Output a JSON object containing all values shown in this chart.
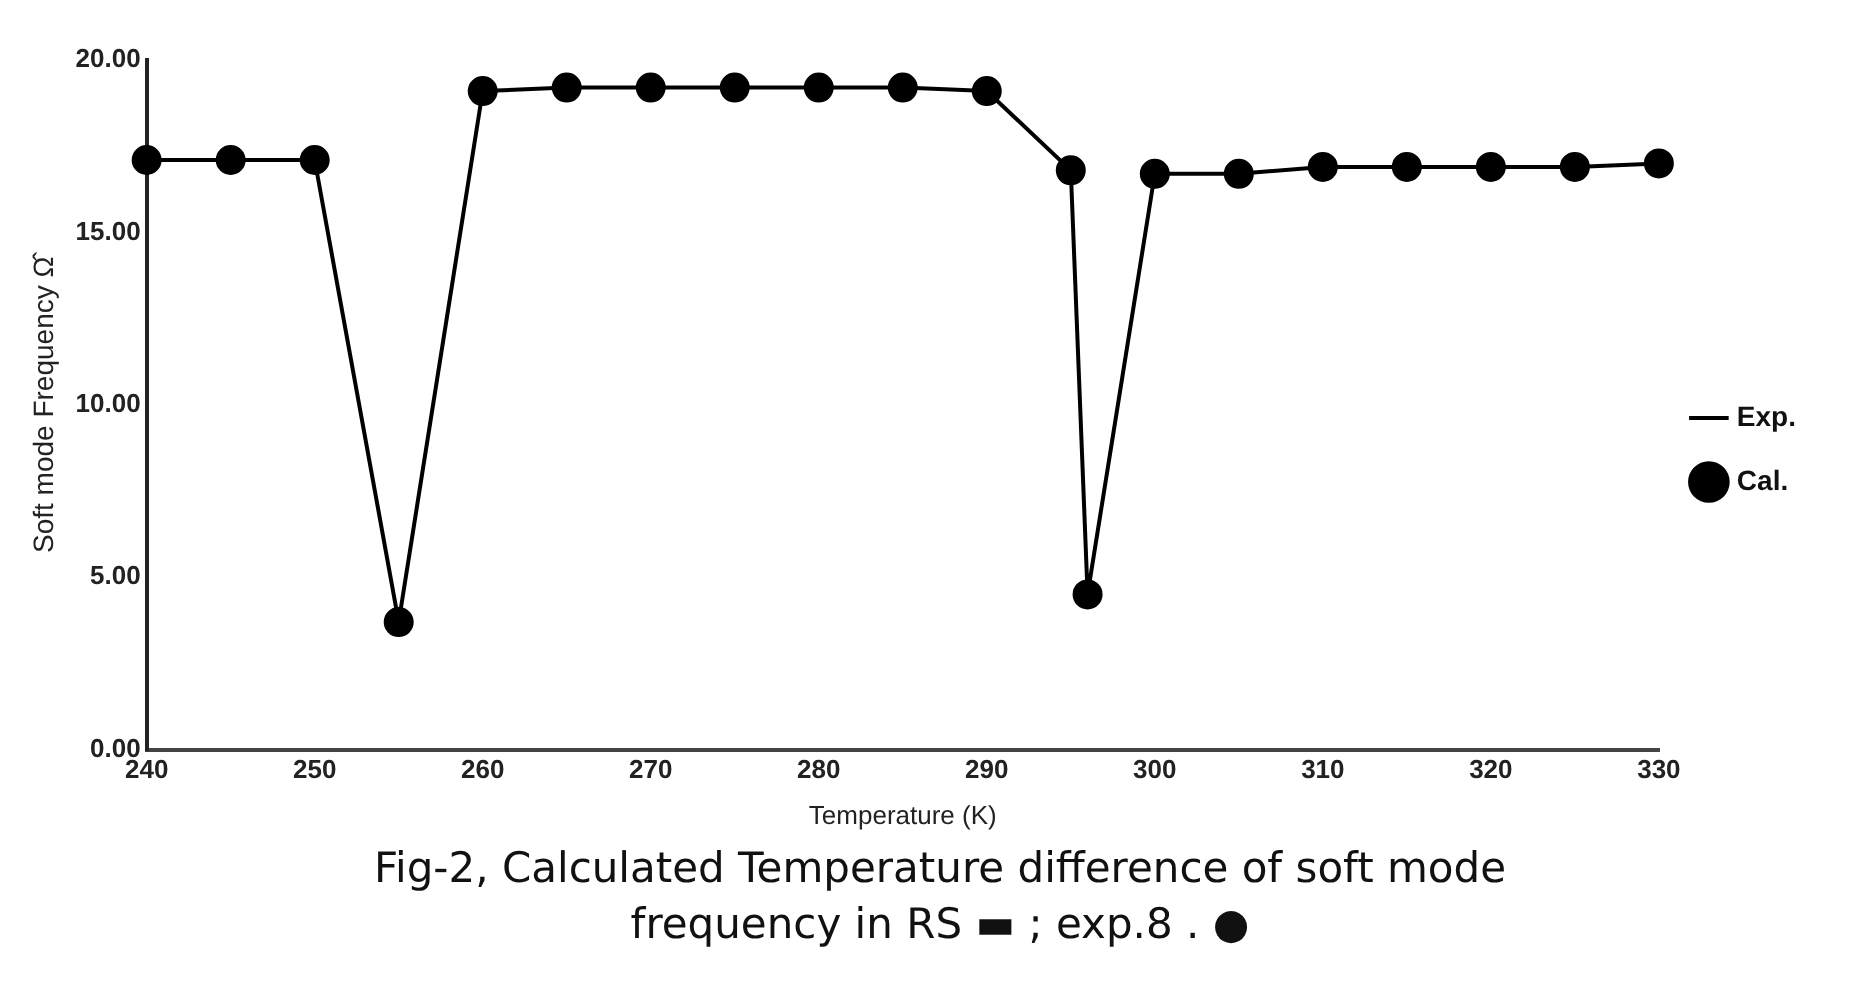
{
  "chart_data": {
    "type": "line",
    "xlabel": "Temperature (K)",
    "ylabel": "Soft mode Frequency Ω̂",
    "x": [
      240,
      245,
      250,
      255,
      260,
      265,
      270,
      275,
      280,
      285,
      290,
      295,
      296,
      300,
      305,
      310,
      315,
      320,
      325,
      330
    ],
    "series": [
      {
        "name": "Exp.",
        "type": "line",
        "marker": "none",
        "color": "#000000",
        "values": [
          17.1,
          17.1,
          17.1,
          3.7,
          19.1,
          19.2,
          19.2,
          19.2,
          19.2,
          19.2,
          19.1,
          16.8,
          4.5,
          16.7,
          16.7,
          16.9,
          16.9,
          16.9,
          16.9,
          17.0
        ]
      },
      {
        "name": "Cal.",
        "type": "scatter",
        "marker": "circle",
        "color": "#000000",
        "values": [
          17.1,
          17.1,
          17.1,
          3.7,
          19.1,
          19.2,
          19.2,
          19.2,
          19.2,
          19.2,
          19.1,
          16.8,
          4.5,
          16.7,
          16.7,
          16.9,
          16.9,
          16.9,
          16.9,
          17.0
        ]
      }
    ],
    "xlim": [
      240,
      330
    ],
    "xticks": [
      240,
      250,
      260,
      270,
      280,
      290,
      300,
      310,
      320,
      330
    ],
    "ylim": [
      0,
      20
    ],
    "yticks": [
      {
        "value": 0,
        "label": "0.00"
      },
      {
        "value": 5,
        "label": "5.00"
      },
      {
        "value": 10,
        "label": "10.00"
      },
      {
        "value": 15,
        "label": "15.00"
      },
      {
        "value": 20,
        "label": "20.00"
      }
    ],
    "grid": false,
    "legend": "right",
    "annotations": [
      "Fig-2, Calculated Temperature difference of soft mode frequency in RS ▬ ;  exp.8 . ●"
    ]
  }
}
